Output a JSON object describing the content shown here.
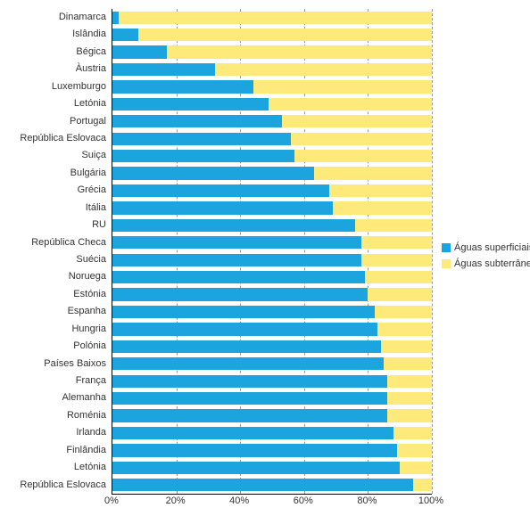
{
  "chart": {
    "type": "stacked-bar-horizontal",
    "background_color": "#ffffff",
    "grid_color": "#999999",
    "axis_color": "#000000",
    "category_font_size": 11,
    "tick_font_size": 11,
    "legend_font_size": 11,
    "xlim": [
      0,
      100
    ],
    "xtick_step": 20,
    "xtick_suffix": "%",
    "bar_fill_ratio": 0.74,
    "series": [
      {
        "key": "surface",
        "label": "Águas superficiais",
        "color": "#1ba4de"
      },
      {
        "key": "ground",
        "label": "Águas subterrâneas",
        "color": "#fdea7a"
      }
    ],
    "categories": [
      {
        "label": "Dinamarca",
        "surface": 2,
        "ground": 98
      },
      {
        "label": "Islândia",
        "surface": 8,
        "ground": 92
      },
      {
        "label": "Bégica",
        "surface": 17,
        "ground": 83
      },
      {
        "label": "Àustria",
        "surface": 32,
        "ground": 68
      },
      {
        "label": "Luxemburgo",
        "surface": 44,
        "ground": 56
      },
      {
        "label": "Letónia",
        "surface": 49,
        "ground": 51
      },
      {
        "label": "Portugal",
        "surface": 53,
        "ground": 47
      },
      {
        "label": "República Eslovaca",
        "surface": 56,
        "ground": 44
      },
      {
        "label": "Suiça",
        "surface": 57,
        "ground": 43
      },
      {
        "label": "Bulgária",
        "surface": 63,
        "ground": 37
      },
      {
        "label": "Grécia",
        "surface": 68,
        "ground": 32
      },
      {
        "label": "Itália",
        "surface": 69,
        "ground": 31
      },
      {
        "label": "RU",
        "surface": 76,
        "ground": 24
      },
      {
        "label": "República Checa",
        "surface": 78,
        "ground": 22
      },
      {
        "label": "Suécia",
        "surface": 78,
        "ground": 22
      },
      {
        "label": "Noruega",
        "surface": 79,
        "ground": 21
      },
      {
        "label": "Estónia",
        "surface": 80,
        "ground": 20
      },
      {
        "label": "Espanha",
        "surface": 82,
        "ground": 18
      },
      {
        "label": "Hungria",
        "surface": 83,
        "ground": 17
      },
      {
        "label": "Polónia",
        "surface": 84,
        "ground": 16
      },
      {
        "label": "Países Baixos",
        "surface": 85,
        "ground": 15
      },
      {
        "label": "França",
        "surface": 86,
        "ground": 14
      },
      {
        "label": "Alemanha",
        "surface": 86,
        "ground": 14
      },
      {
        "label": "Roménia",
        "surface": 86,
        "ground": 14
      },
      {
        "label": "Irlanda",
        "surface": 88,
        "ground": 12
      },
      {
        "label": "Finlândia",
        "surface": 89,
        "ground": 11
      },
      {
        "label": "Letónia",
        "surface": 90,
        "ground": 10
      },
      {
        "label": "República Eslovaca",
        "surface": 94,
        "ground": 6
      }
    ]
  }
}
